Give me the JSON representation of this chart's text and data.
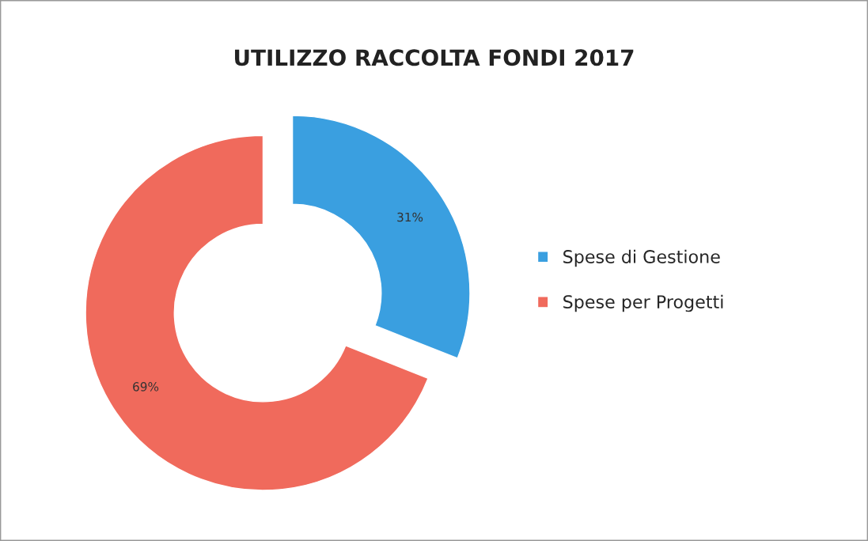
{
  "chart_data": {
    "type": "donut",
    "title": "UTILIZZO RACCOLTA FONDI 2017",
    "categories": [
      "Spese di Gestione",
      "Spese per Progetti"
    ],
    "values": [
      31,
      69
    ],
    "colors": [
      "#3a9fe0",
      "#f06a5c"
    ],
    "value_labels": [
      "31%",
      "69%"
    ],
    "legend": "right"
  }
}
